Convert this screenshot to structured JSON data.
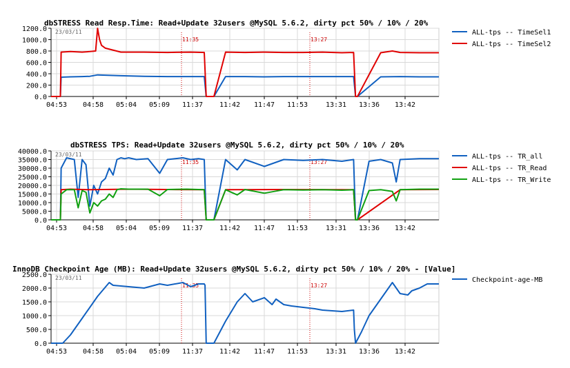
{
  "chart_data": [
    {
      "type": "line",
      "title": "dbSTRESS Read Resp.Time: Read+Update 32users @MySQL 5.6.2, dirty pct 50% / 10% / 20%",
      "date_label": "23/03/11",
      "xlabel": "",
      "ylabel": "",
      "x_ticks": [
        "04:53",
        "04:58",
        "05:04",
        "05:09",
        "11:37",
        "11:42",
        "11:47",
        "11:53",
        "13:31",
        "13:36",
        "13:42"
      ],
      "y_ticks": [
        "0.0",
        "200.0",
        "400.0",
        "600.0",
        "800.0",
        "1000.0",
        "1200.0"
      ],
      "ylim": [
        0,
        1200
      ],
      "grid": true,
      "legend_position": "right",
      "markers": [
        "11:35",
        "13:27"
      ],
      "series": [
        {
          "name": "ALL-tps -- TimeSel1",
          "color": "#1060c0",
          "x": [
            0,
            2.4,
            2.6,
            5,
            8,
            10,
            12,
            18,
            24,
            30,
            36,
            39.5,
            40,
            42,
            45,
            50,
            55,
            60,
            65,
            70,
            75,
            78,
            78.5,
            79,
            85,
            90,
            95,
            100
          ],
          "y": [
            0,
            0,
            340,
            345,
            350,
            355,
            380,
            365,
            355,
            350,
            350,
            350,
            0,
            0,
            350,
            350,
            345,
            350,
            350,
            350,
            350,
            350,
            0,
            0,
            345,
            350,
            345,
            345
          ]
        },
        {
          "name": "ALL-tps -- TimeSel2",
          "color": "#e00000",
          "x": [
            0,
            2.4,
            2.6,
            5,
            8,
            10,
            11.5,
            12,
            12.5,
            13,
            14,
            18,
            24,
            30,
            36,
            39.5,
            40,
            42,
            45,
            50,
            55,
            60,
            65,
            70,
            75,
            78,
            78.5,
            79,
            85,
            88,
            90,
            95,
            100
          ],
          "y": [
            0,
            0,
            780,
            790,
            780,
            790,
            800,
            1200,
            1000,
            900,
            850,
            780,
            780,
            775,
            780,
            775,
            0,
            0,
            780,
            775,
            780,
            775,
            775,
            780,
            770,
            775,
            0,
            0,
            770,
            800,
            775,
            770,
            770
          ]
        }
      ]
    },
    {
      "type": "line",
      "title": "dbSTRESS TPS: Read+Update 32users @MySQL 5.6.2, dirty pct 50% / 10% / 20%",
      "date_label": "23/03/11",
      "xlabel": "",
      "ylabel": "",
      "x_ticks": [
        "04:53",
        "04:58",
        "05:04",
        "05:09",
        "11:37",
        "11:42",
        "11:47",
        "11:53",
        "13:31",
        "13:36",
        "13:42"
      ],
      "y_ticks": [
        "0.0",
        "5000.0",
        "10000.0",
        "15000.0",
        "20000.0",
        "25000.0",
        "30000.0",
        "35000.0",
        "40000.0"
      ],
      "ylim": [
        0,
        40000
      ],
      "grid": true,
      "legend_position": "right",
      "markers": [
        "11:35",
        "13:27"
      ],
      "series": [
        {
          "name": "ALL-tps -- TR_all",
          "color": "#1060c0",
          "x": [
            0,
            2.4,
            2.6,
            4,
            6,
            7,
            8,
            9,
            10,
            11,
            12,
            13,
            14,
            15,
            16,
            17,
            18,
            19,
            20,
            22,
            25,
            28,
            30,
            32,
            34,
            36,
            38,
            39.5,
            40,
            42,
            45,
            48,
            50,
            55,
            60,
            65,
            70,
            75,
            78,
            78.5,
            79,
            82,
            85,
            88,
            89,
            90,
            95,
            100
          ],
          "y": [
            0,
            0,
            30000,
            36000,
            35000,
            13000,
            35000,
            32000,
            8000,
            20000,
            15000,
            22000,
            24000,
            30000,
            26000,
            35000,
            36000,
            35500,
            36000,
            35000,
            35500,
            27000,
            35000,
            35500,
            36000,
            35000,
            35500,
            35000,
            0,
            0,
            35000,
            29000,
            35000,
            31000,
            35000,
            34500,
            35000,
            34000,
            35000,
            0,
            0,
            34000,
            35000,
            33000,
            22000,
            35000,
            35500,
            35500
          ]
        },
        {
          "name": "ALL-tps -- TR_Read",
          "color": "#e00000",
          "x": [
            0,
            2.4,
            2.6,
            5,
            10,
            20,
            30,
            39.5,
            40,
            42,
            45,
            60,
            78,
            78.5,
            79,
            90,
            100
          ],
          "y": [
            0,
            0,
            17500,
            17800,
            17500,
            17800,
            17600,
            17500,
            0,
            0,
            17500,
            17600,
            17500,
            0,
            0,
            17500,
            17600
          ]
        },
        {
          "name": "ALL-tps -- TR_Write",
          "color": "#10a010",
          "x": [
            0,
            2.4,
            2.6,
            4,
            6,
            7,
            8,
            9,
            10,
            11,
            12,
            13,
            14,
            15,
            16,
            17,
            18,
            20,
            25,
            28,
            30,
            35,
            39.5,
            40,
            42,
            45,
            48,
            50,
            55,
            60,
            65,
            70,
            75,
            78,
            78.5,
            79,
            82,
            85,
            88,
            89,
            90,
            95,
            100
          ],
          "y": [
            0,
            0,
            15000,
            17500,
            17500,
            7000,
            17000,
            16000,
            4000,
            10000,
            8000,
            11000,
            12000,
            15000,
            13000,
            17500,
            18000,
            17800,
            17800,
            14000,
            17600,
            17800,
            17500,
            0,
            0,
            17500,
            14500,
            17600,
            15500,
            17500,
            17300,
            17500,
            17200,
            17500,
            0,
            0,
            17000,
            17500,
            16500,
            11000,
            17500,
            17800,
            17800
          ]
        }
      ]
    },
    {
      "type": "line",
      "title": "InnoDB Checkpoint Age (MB): Read+Update 32users @MySQL 5.6.2, dirty pct 50% / 10% / 20% - [Value]",
      "date_label": "23/03/11",
      "xlabel": "",
      "ylabel": "",
      "x_ticks": [
        "04:53",
        "04:58",
        "05:04",
        "05:09",
        "11:37",
        "11:42",
        "11:47",
        "11:53",
        "13:31",
        "13:36",
        "13:42"
      ],
      "y_ticks": [
        "0.0",
        "500.0",
        "1000.0",
        "1500.0",
        "2000.0",
        "2500.0"
      ],
      "ylim": [
        0,
        2500
      ],
      "grid": true,
      "legend_position": "right",
      "markers": [
        "11:35",
        "13:27"
      ],
      "series": [
        {
          "name": "Checkpoint-age-MB",
          "color": "#1060c0",
          "x": [
            0,
            3,
            5,
            8,
            12,
            15,
            16,
            20,
            24,
            28,
            30,
            34,
            36,
            38,
            39.5,
            39.7,
            40,
            42,
            45,
            48,
            50,
            52,
            55,
            57,
            58,
            60,
            62,
            65,
            68,
            70,
            75,
            78,
            78.2,
            78.5,
            80,
            82,
            85,
            88,
            90,
            92,
            93,
            95,
            97,
            100
          ],
          "y": [
            0,
            0,
            300,
            900,
            1700,
            2200,
            2100,
            2050,
            2000,
            2150,
            2100,
            2200,
            2050,
            2150,
            2150,
            2100,
            0,
            0,
            800,
            1500,
            1800,
            1500,
            1650,
            1400,
            1600,
            1400,
            1350,
            1300,
            1250,
            1200,
            1150,
            1200,
            500,
            0,
            400,
            1000,
            1600,
            2200,
            1800,
            1750,
            1900,
            2000,
            2150,
            2150
          ]
        }
      ]
    }
  ]
}
